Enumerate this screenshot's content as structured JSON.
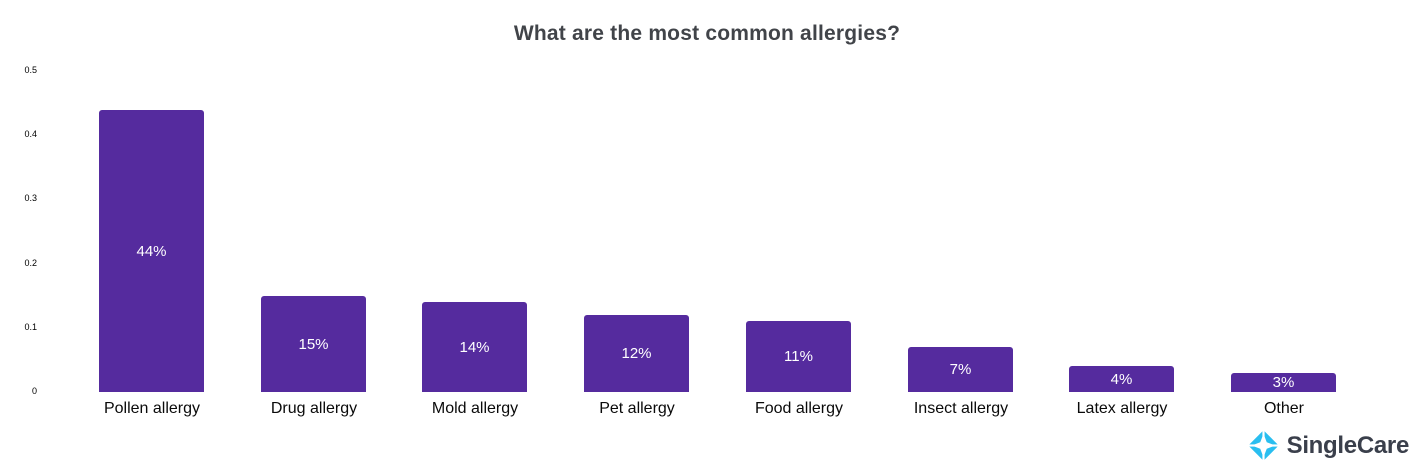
{
  "title": "What are the most common allergies?",
  "chart_data": {
    "type": "bar",
    "title": "What are the most common allergies?",
    "categories": [
      "Pollen allergy",
      "Drug allergy",
      "Mold allergy",
      "Pet allergy",
      "Food allergy",
      "Insect allergy",
      "Latex allergy",
      "Other"
    ],
    "values": [
      0.44,
      0.15,
      0.14,
      0.12,
      0.11,
      0.07,
      0.04,
      0.03
    ],
    "value_labels": [
      "44%",
      "15%",
      "14%",
      "12%",
      "11%",
      "7%",
      "4%",
      "3%"
    ],
    "xlabel": "",
    "ylabel": "",
    "ylim": [
      0,
      0.5
    ],
    "yticks": [
      0,
      0.1,
      0.2,
      0.3,
      0.4,
      0.5
    ],
    "ytick_labels": [
      "0",
      "0.1",
      "0.2",
      "0.3",
      "0.4",
      "0.5"
    ],
    "grid": false,
    "legend": null,
    "bar_color": "#552B9E",
    "bar_label_color": "#FFFFFF"
  },
  "branding": {
    "logo_text": "SingleCare",
    "logo_icon": "singlecare-spark-icon",
    "icon_color": "#29BEF0",
    "text_color": "#3A3F4B"
  },
  "colors": {
    "background": "#FFFFFF",
    "title_text": "#414449",
    "axis_text": "#000000"
  }
}
